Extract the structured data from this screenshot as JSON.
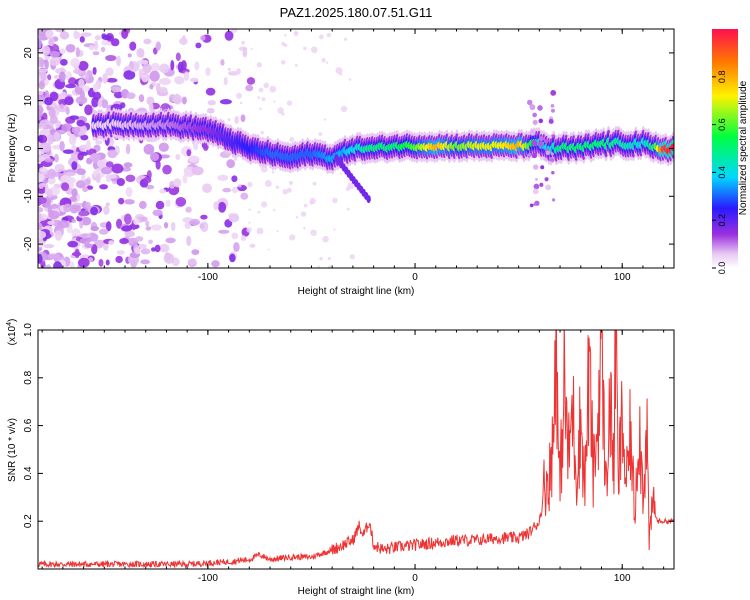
{
  "title": "PAZ1.2025.180.07.51.G11",
  "colors": {
    "snr_line": "#ee3333",
    "spectrogram_dark": "#7a2be2",
    "spectrogram_light": "#d9c7f5",
    "background": "#ffffff"
  },
  "chart_data": [
    {
      "type": "heatmap",
      "title": "PAZ1.2025.180.07.51.G11",
      "xlabel": "Height of straight line (km)",
      "ylabel": "Frequency (Hz)",
      "xlim": [
        -182,
        125
      ],
      "ylim": [
        -25,
        25
      ],
      "xticks": [
        -100,
        0,
        100
      ],
      "yticks": [
        -20,
        -10,
        0,
        10,
        20
      ],
      "colorbar": {
        "label": "Normalized spectral amplitude",
        "range": [
          0,
          1
        ],
        "ticks": [
          "0.0",
          "0.2",
          "0.4",
          "0.6",
          "0.8"
        ],
        "colormap": "rainbow (white-purple-blue-cyan-green-yellow-red)"
      },
      "ridge": {
        "x": [
          -150,
          -120,
          -100,
          -90,
          -80,
          -70,
          -60,
          -50,
          -40,
          -35,
          -30,
          -20,
          -10,
          0,
          10,
          20,
          30,
          40,
          50,
          60,
          65,
          70,
          80,
          90,
          100,
          110,
          115,
          120,
          125
        ],
        "frequency": [
          5,
          5,
          4,
          2,
          0,
          -1,
          -2,
          -1,
          -2,
          -1,
          0,
          0,
          0.5,
          0.5,
          0.5,
          0.5,
          0.5,
          0.5,
          0.5,
          1,
          0,
          0,
          0,
          1,
          1,
          1,
          0,
          0,
          0
        ],
        "amplitude": [
          0.05,
          0.1,
          0.15,
          0.2,
          0.25,
          0.3,
          0.3,
          0.3,
          0.35,
          0.35,
          0.4,
          0.5,
          0.5,
          0.6,
          0.8,
          0.6,
          0.7,
          0.7,
          0.8,
          0.4,
          0.4,
          0.5,
          0.5,
          0.5,
          0.45,
          0.4,
          0.5,
          0.95,
          1.0
        ]
      }
    },
    {
      "type": "line",
      "xlabel": "Height of straight line (km)",
      "ylabel": "SNR (10 * v/v)",
      "yscale_label": "(x10",
      "yscale_exponent": "4",
      "xlim": [
        -182,
        125
      ],
      "ylim": [
        0,
        1.0
      ],
      "xticks": [
        -100,
        0,
        100
      ],
      "yticks": [
        0.2,
        0.4,
        0.6,
        0.8,
        1.0
      ],
      "series": [
        {
          "color": "#ee3333",
          "x": [
            -182,
            -170,
            -150,
            -130,
            -110,
            -100,
            -90,
            -80,
            -75,
            -70,
            -60,
            -50,
            -40,
            -35,
            -30,
            -27,
            -25,
            -22,
            -20,
            -15,
            -10,
            0,
            10,
            20,
            30,
            40,
            50,
            55,
            60,
            62,
            65,
            67,
            68,
            69,
            70,
            72,
            74,
            76,
            78,
            80,
            82,
            84,
            86,
            88,
            90,
            92,
            94,
            96,
            97,
            98,
            100,
            102,
            104,
            106,
            108,
            110,
            112,
            113,
            115,
            117,
            120,
            125
          ],
          "values": [
            0.02,
            0.02,
            0.02,
            0.02,
            0.02,
            0.025,
            0.03,
            0.04,
            0.06,
            0.04,
            0.05,
            0.05,
            0.08,
            0.1,
            0.12,
            0.18,
            0.14,
            0.2,
            0.1,
            0.08,
            0.09,
            0.1,
            0.11,
            0.12,
            0.12,
            0.13,
            0.13,
            0.15,
            0.2,
            0.3,
            0.35,
            0.5,
            1.0,
            0.45,
            0.3,
            0.7,
            0.4,
            0.6,
            0.35,
            0.55,
            0.3,
            0.75,
            0.35,
            0.5,
            0.88,
            0.3,
            0.6,
            0.4,
            0.96,
            0.3,
            0.55,
            0.3,
            0.5,
            0.2,
            0.55,
            0.3,
            0.5,
            0.1,
            0.25,
            0.2,
            0.2,
            0.2
          ]
        }
      ]
    }
  ]
}
